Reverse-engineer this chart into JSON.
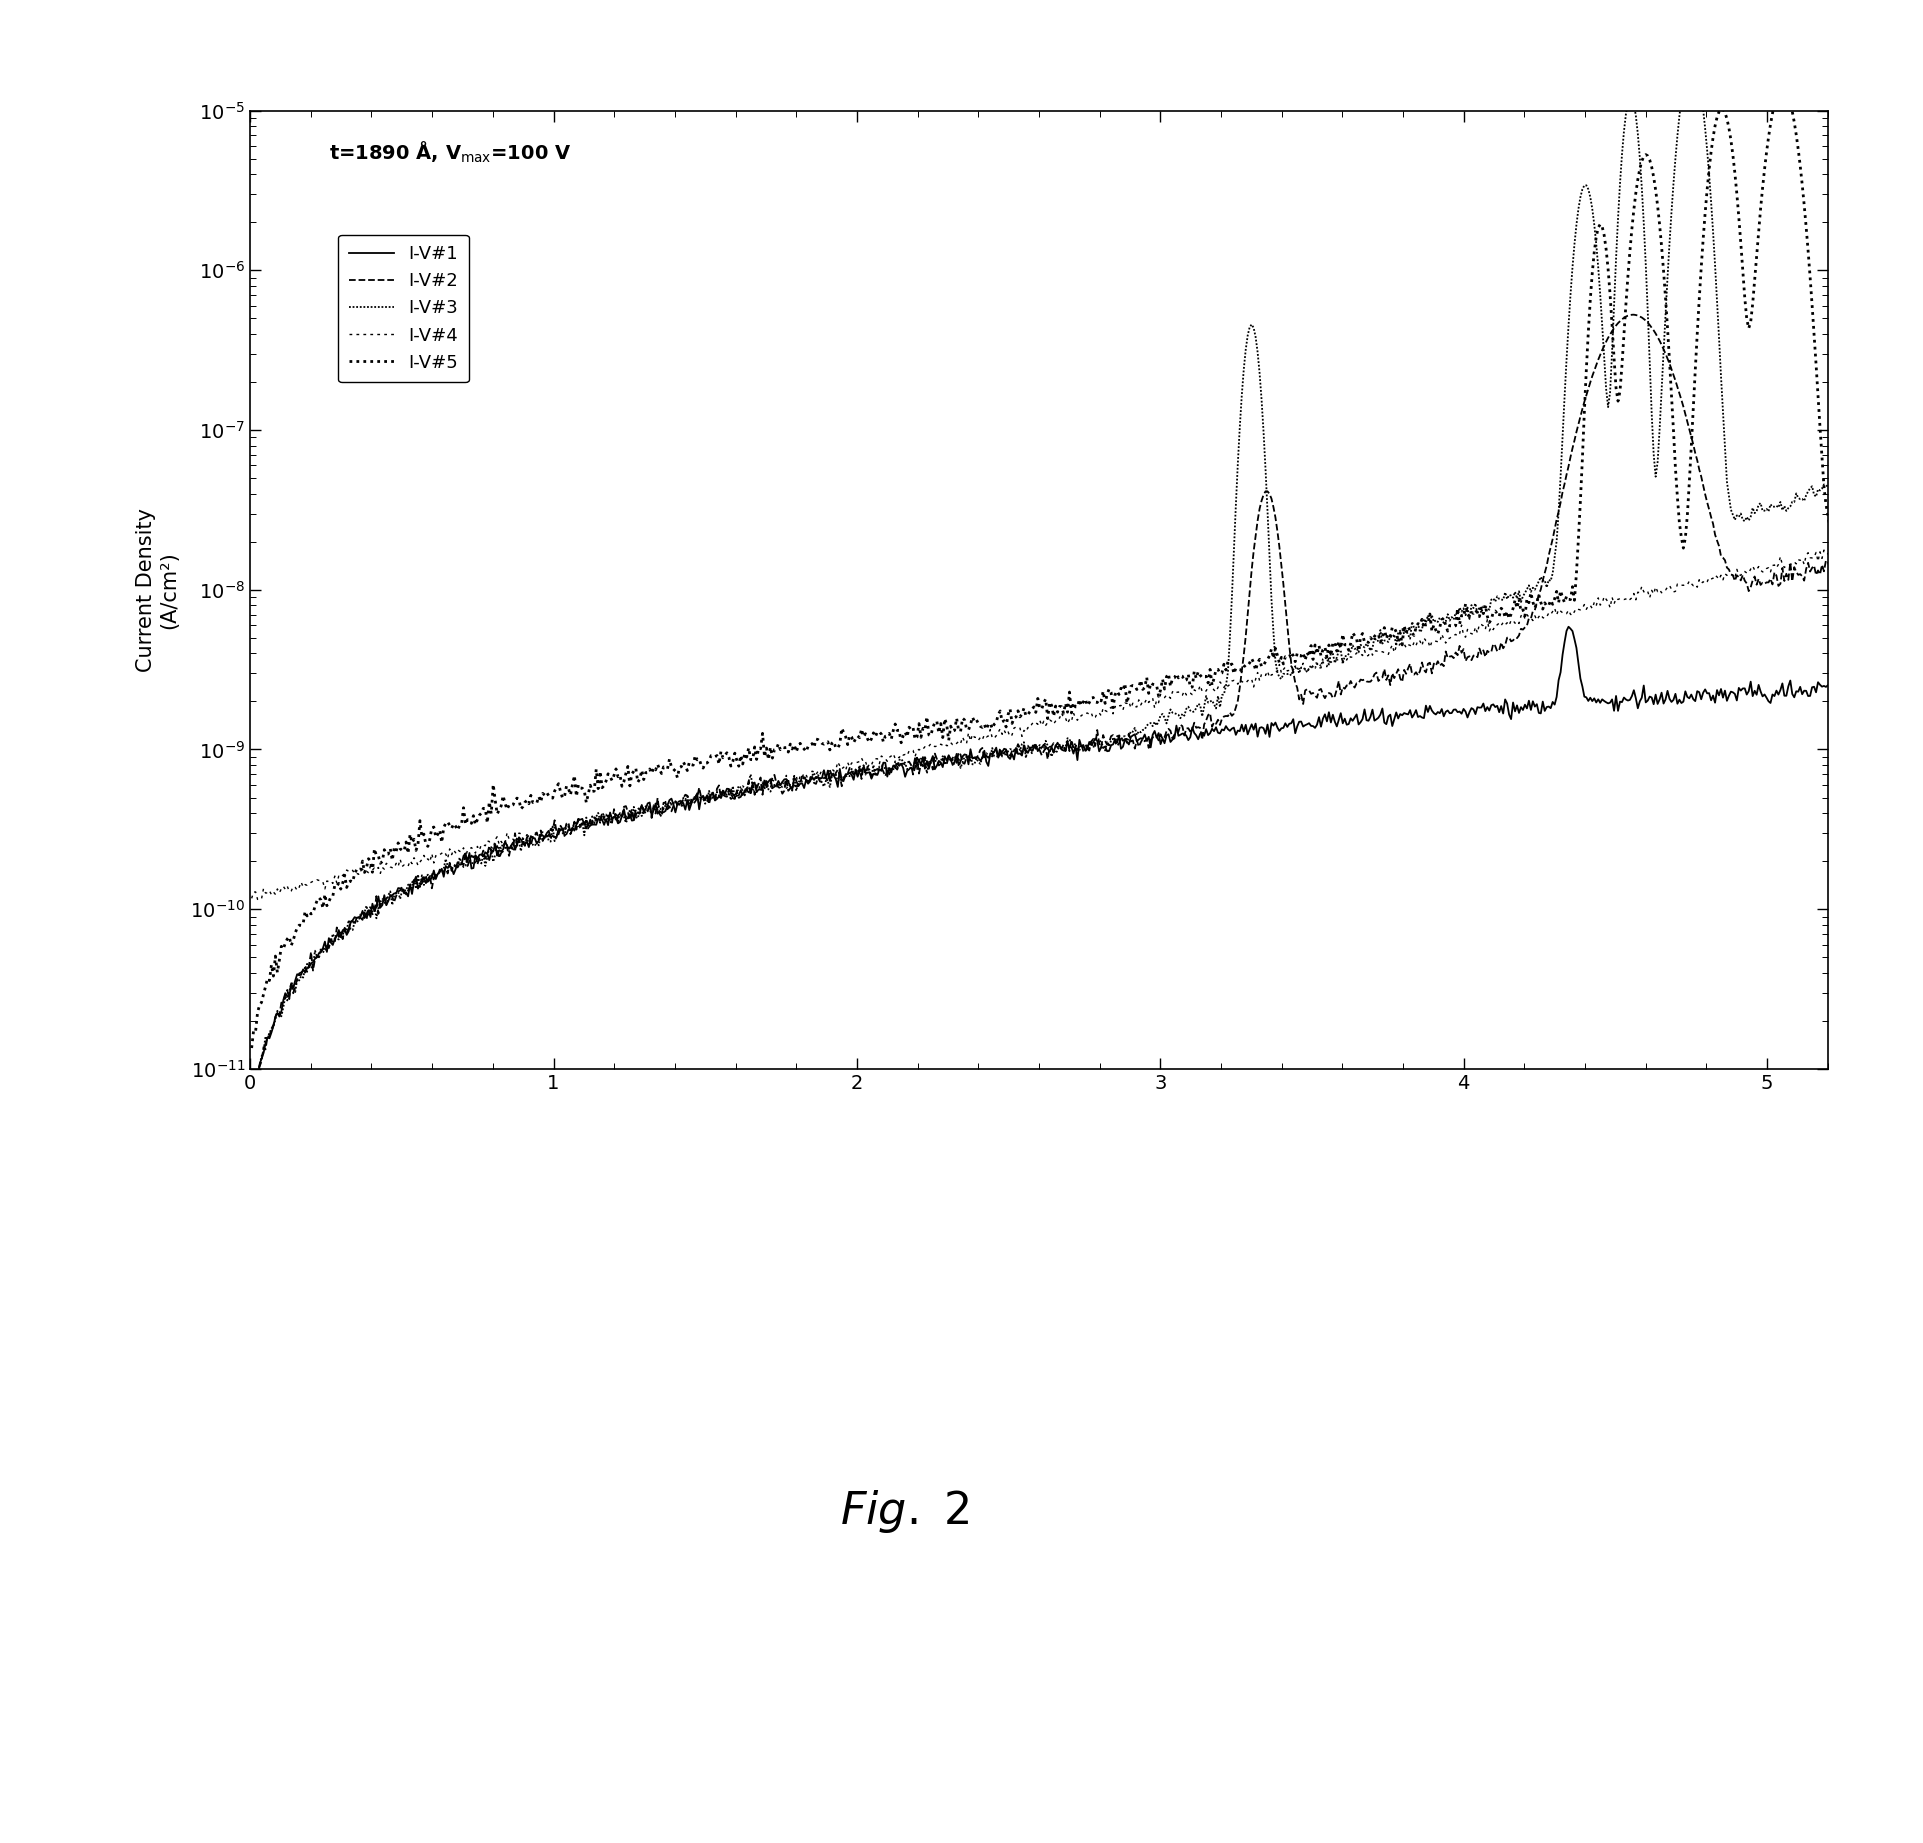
{
  "ylabel": "Current Density\n(A/cm²)",
  "xlabel": "",
  "xlim": [
    0,
    5.2
  ],
  "ylim_min": 1e-11,
  "ylim_max": 1e-05,
  "legend_labels": [
    "I-V#1",
    "I-V#2",
    "I-V#3",
    "I-V#4",
    "I-V#5"
  ],
  "bg_color": "white",
  "fig_width": 19.24,
  "fig_height": 18.43,
  "dpi": 100
}
